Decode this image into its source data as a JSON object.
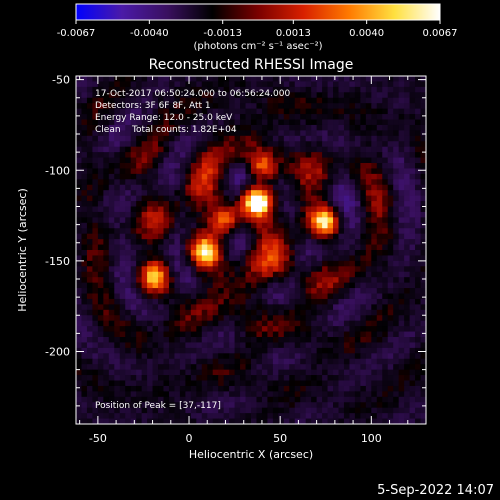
{
  "chart_data": {
    "type": "heatmap",
    "title": "Reconstructed RHESSI Image",
    "xlabel": "Heliocentric X (arcsec)",
    "ylabel": "Heliocentric Y (arcsec)",
    "xlim": [
      -62,
      130
    ],
    "ylim": [
      -240,
      -48
    ],
    "xticks": [
      -50,
      0,
      50,
      100
    ],
    "yticks": [
      -50,
      -100,
      -150,
      -200
    ],
    "grid": false,
    "colorbar": {
      "min": -0.0067,
      "max": 0.0067,
      "ticks": [
        "-0.0067",
        "-0.0040",
        "-0.0013",
        "0.0013",
        "0.0040",
        "0.0067"
      ],
      "tick_values": [
        -0.0067,
        -0.004,
        -0.0013,
        0.0013,
        0.004,
        0.0067
      ],
      "label": "(photons cm⁻² s⁻¹ asec⁻²)",
      "colors": [
        "#0000ff",
        "#4a1aa8",
        "#3a1060",
        "#000000",
        "#7a0000",
        "#d82000",
        "#ff7a00",
        "#ffe040",
        "#ffffff"
      ]
    },
    "peak": {
      "x": 37,
      "y": -117
    },
    "annotations": [
      "17-Oct-2017 06:50:24.000 to 06:56:24.000",
      "Detectors: 3F 6F 8F, Att 1",
      "Energy Range: 12.0 - 25.0 keV",
      "Clean    Total counts: 1.82E+04",
      "Position of Peak = [37,-117]"
    ],
    "sources": [
      {
        "x": 37,
        "y": -117,
        "value": 0.0067
      },
      {
        "x": 75,
        "y": -129,
        "value": 0.005
      },
      {
        "x": 8,
        "y": -145,
        "value": 0.0046
      },
      {
        "x": -19,
        "y": -159,
        "value": 0.0042
      },
      {
        "x": 40,
        "y": -98,
        "value": 0.004
      },
      {
        "x": 20,
        "y": -128,
        "value": 0.0038
      }
    ]
  },
  "footer": {
    "date": "5-Sep-2022 14:07"
  }
}
